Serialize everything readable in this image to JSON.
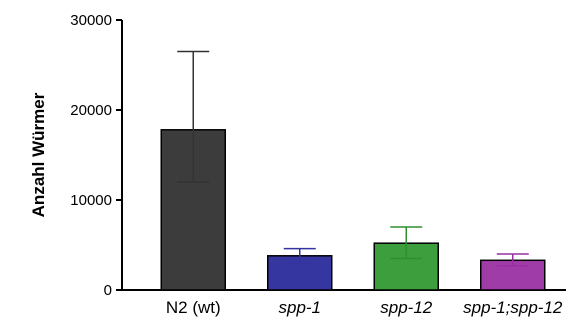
{
  "chart_data": {
    "type": "bar",
    "title": "",
    "xlabel": "",
    "ylabel": "Anzahl Würmer",
    "ylim": [
      0,
      30000
    ],
    "yticks": [
      0,
      10000,
      20000,
      30000
    ],
    "ytick_labels": [
      "0",
      "10000",
      "20000",
      "30000"
    ],
    "grid": false,
    "categories": [
      "N2 (wt)",
      "spp-1",
      "spp-12",
      "spp-1;spp-12"
    ],
    "category_italic": [
      false,
      true,
      true,
      true
    ],
    "values": [
      17800,
      3800,
      5200,
      3300
    ],
    "error_low": [
      12000,
      3000,
      3500,
      2700
    ],
    "error_high": [
      26500,
      4600,
      7000,
      4000
    ],
    "colors": [
      "#3c3c3c",
      "#3636a0",
      "#3c9e3c",
      "#a03ca8"
    ],
    "error_colors": [
      "#333333",
      "#3333a0",
      "#2e8f2e",
      "#9a2ea4"
    ]
  }
}
